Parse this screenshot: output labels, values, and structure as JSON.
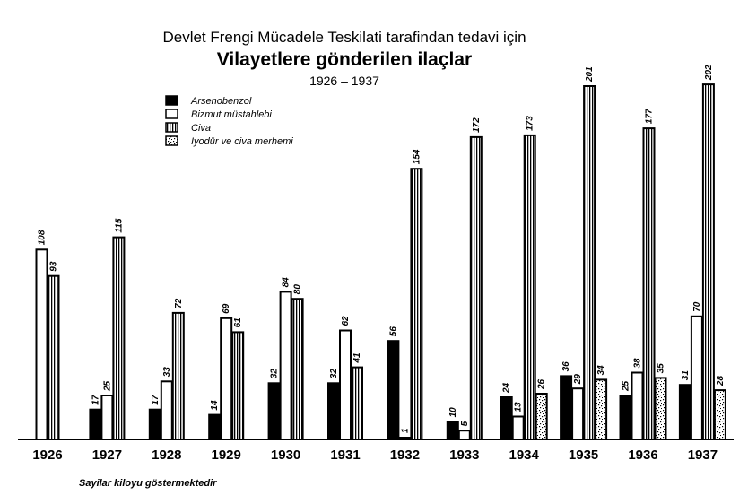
{
  "chart_data": {
    "type": "bar",
    "title_line1": "Devlet Frengi Mücadele Teskilati tarafindan tedavi için",
    "title_line2": "Vilayetlere gönderilen ilaçlar",
    "subtitle": "1926 – 1937",
    "footnote": "Sayilar kiloyu göstermektedir",
    "categories": [
      "1926",
      "1927",
      "1928",
      "1929",
      "1930",
      "1931",
      "1932",
      "1933",
      "1934",
      "1935",
      "1936",
      "1937"
    ],
    "series": [
      {
        "name": "Arsenobenzol",
        "pattern": "solid",
        "values": [
          null,
          17,
          17,
          14,
          32,
          32,
          56,
          10,
          24,
          36,
          25,
          31
        ]
      },
      {
        "name": "Bizmut müstahlebi",
        "pattern": "outline",
        "values": [
          108,
          25,
          33,
          69,
          84,
          62,
          1,
          5,
          13,
          29,
          38,
          70
        ]
      },
      {
        "name": "Civa",
        "pattern": "vertical-stripes",
        "values": [
          93,
          115,
          72,
          61,
          80,
          41,
          154,
          172,
          173,
          201,
          177,
          202
        ]
      },
      {
        "name": "Iyodür ve civa merhemi",
        "pattern": "dotted",
        "values": [
          null,
          null,
          null,
          null,
          null,
          null,
          null,
          null,
          26,
          34,
          35,
          28
        ]
      }
    ],
    "legend_position": "top-left",
    "grid": false,
    "colors": {
      "ink": "#000000",
      "fill": "#ffffff"
    }
  }
}
